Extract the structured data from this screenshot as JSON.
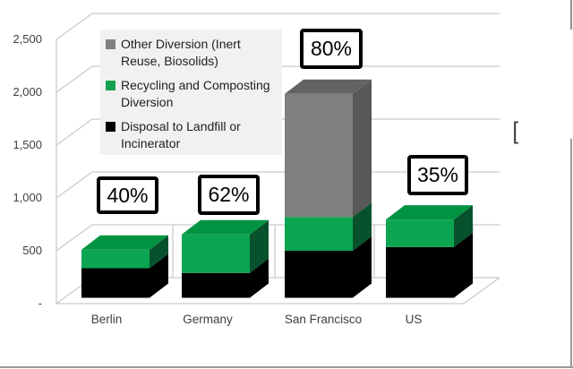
{
  "page": {
    "bracket_char": "["
  },
  "chart_data": {
    "type": "bar",
    "variant": "3d-stacked-column",
    "title": "",
    "xlabel": "",
    "ylabel": "",
    "categories": [
      "Berlin",
      "Germany",
      "San Francisco",
      "US"
    ],
    "series": [
      {
        "name": "Disposal to Landfill or Incinerator",
        "values": [
          280,
          235,
          445,
          480
        ],
        "colors": {
          "front": "#000000",
          "top": "#1a1a1a",
          "side": "#000000"
        }
      },
      {
        "name": "Recycling and Composting Diversion",
        "values": [
          175,
          365,
          320,
          260
        ],
        "colors": {
          "front": "#0ca551",
          "top": "#009442",
          "side": "#07522c"
        }
      },
      {
        "name": "Other Diversion (Inert Reuse, Biosolids)",
        "values": [
          0,
          0,
          1165,
          0
        ],
        "colors": {
          "front": "#7f7f7f",
          "top": "#636363",
          "side": "#585858"
        }
      }
    ],
    "percent_labels": [
      "40%",
      "62%",
      "80%",
      "35%"
    ],
    "y_ticks": [
      {
        "label": "2,500",
        "value": 2500
      },
      {
        "label": "2,000",
        "value": 2000
      },
      {
        "label": "1,500",
        "value": 1500
      },
      {
        "label": "1,000",
        "value": 1000
      },
      {
        "label": "500",
        "value": 500
      },
      {
        "label": "-",
        "value": 0
      }
    ],
    "ylim": [
      0,
      2500
    ],
    "grid": "horizontal-backwall",
    "legend": {
      "position": "top-left",
      "items": [
        {
          "label": "Other Diversion (Inert Reuse, Biosolids)",
          "swatch": "#808080"
        },
        {
          "label": "Recycling and Composting Diversion",
          "swatch": "#14a152"
        },
        {
          "label": "Disposal to Landfill or Incinerator",
          "swatch": "#000000"
        }
      ]
    },
    "colors": {
      "gridline": "#c9c9c9",
      "axis_text": "#3f3f3f",
      "legend_bg": "#f1f1f1",
      "callout_border": "#000000",
      "page_border": "#9b9b9b"
    }
  }
}
